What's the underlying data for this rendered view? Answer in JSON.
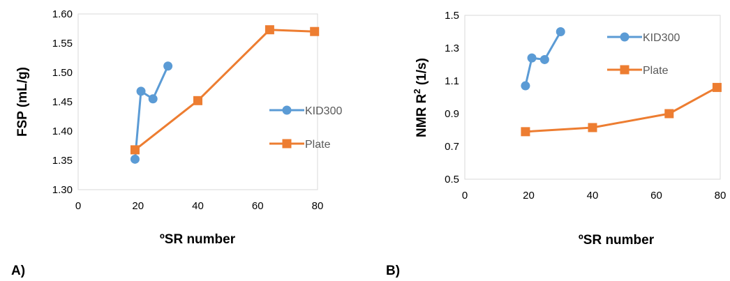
{
  "chart_data": [
    {
      "type": "line",
      "panel_label": "A)",
      "title": "",
      "xlabel": "ºSR number",
      "ylabel": "FSP (mL/g)",
      "xlim": [
        0,
        80
      ],
      "ylim": [
        1.3,
        1.6
      ],
      "x_ticks": [
        "0",
        "20",
        "40",
        "60",
        "80"
      ],
      "y_ticks": [
        "1.30",
        "1.35",
        "1.40",
        "1.45",
        "1.50",
        "1.55",
        "1.60"
      ],
      "legend": "right",
      "series": [
        {
          "name": "KID300",
          "color": "#5B9BD5",
          "marker": "circle",
          "x": [
            19,
            21,
            25,
            30
          ],
          "y": [
            1.352,
            1.468,
            1.455,
            1.511
          ]
        },
        {
          "name": "Plate",
          "color": "#ED7D31",
          "marker": "square",
          "x": [
            19,
            40,
            64,
            79
          ],
          "y": [
            1.368,
            1.452,
            1.573,
            1.57
          ]
        }
      ]
    },
    {
      "type": "line",
      "panel_label": "B)",
      "title": "",
      "xlabel": "ºSR number",
      "ylabel": "NMR R",
      "ylabel_sup": "2",
      "ylabel_unit": " (1/s)",
      "xlim": [
        0,
        80
      ],
      "ylim": [
        0.5,
        1.5
      ],
      "x_ticks": [
        "0",
        "20",
        "40",
        "60",
        "80"
      ],
      "y_ticks": [
        "0.5",
        "0.7",
        "0.9",
        "1.1",
        "1.3",
        "1.5"
      ],
      "legend": "top-right",
      "series": [
        {
          "name": "KID300",
          "color": "#5B9BD5",
          "marker": "circle",
          "x": [
            19,
            21,
            25,
            30
          ],
          "y": [
            1.07,
            1.24,
            1.23,
            1.4
          ]
        },
        {
          "name": "Plate",
          "color": "#ED7D31",
          "marker": "square",
          "x": [
            19,
            40,
            64,
            79
          ],
          "y": [
            0.79,
            0.815,
            0.9,
            1.06
          ]
        }
      ]
    }
  ]
}
